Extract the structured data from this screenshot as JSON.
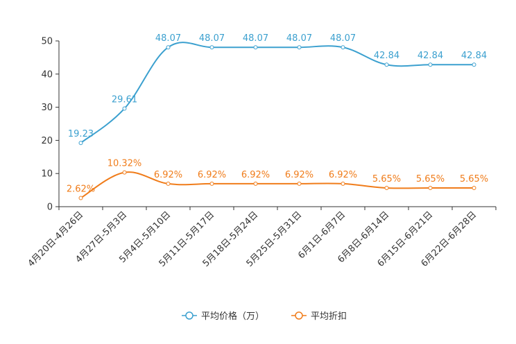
{
  "chart_data": {
    "type": "line",
    "title": "",
    "xlabel": "",
    "ylabel": "",
    "ylim": [
      0,
      50
    ],
    "yticks": [
      0,
      10,
      20,
      30,
      40,
      50
    ],
    "grid": false,
    "legend_position": "bottom-center",
    "categories": [
      "4月20日-4月26日",
      "4月27日-5月3日",
      "5月4日-5月10日",
      "5月11日-5月17日",
      "5月18日-5月24日",
      "5月25日-5月31日",
      "6月1日-6月7日",
      "6月8日-6月14日",
      "6月15日-6月21日",
      "6月22日-6月28日"
    ],
    "series": [
      {
        "name": "平均价格（万）",
        "color": "#3ba0cf",
        "values": [
          19.23,
          29.61,
          48.07,
          48.07,
          48.07,
          48.07,
          48.07,
          42.84,
          42.84,
          42.84
        ],
        "labels": [
          "19.23",
          "29.61",
          "48.07",
          "48.07",
          "48.07",
          "48.07",
          "48.07",
          "42.84",
          "42.84",
          "42.84"
        ]
      },
      {
        "name": "平均折扣",
        "color": "#f07c1a",
        "values": [
          2.62,
          10.32,
          6.92,
          6.92,
          6.92,
          6.92,
          6.92,
          5.65,
          5.65,
          5.65
        ],
        "labels": [
          "2.62%",
          "10.32%",
          "6.92%",
          "6.92%",
          "6.92%",
          "6.92%",
          "6.92%",
          "5.65%",
          "5.65%",
          "5.65%"
        ]
      }
    ]
  }
}
